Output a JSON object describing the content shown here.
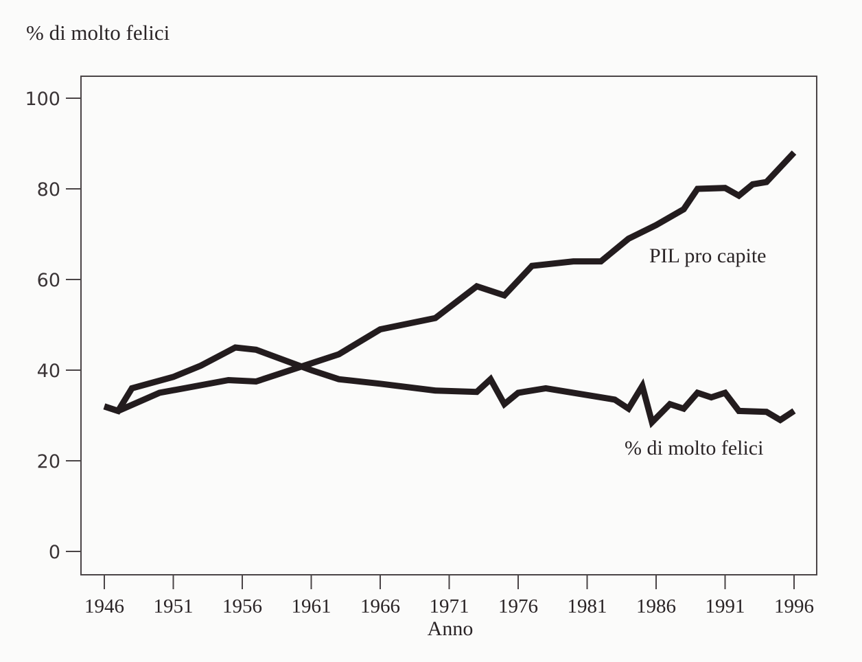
{
  "chart_data": {
    "type": "line",
    "title": "",
    "ylabel": "% di molto felici",
    "xlabel": "Anno",
    "xlim": [
      1946,
      1996
    ],
    "ylim": [
      0,
      100
    ],
    "grid": false,
    "x_ticks": [
      "1946",
      "1951",
      "1956",
      "1961",
      "1966",
      "1971",
      "1976",
      "1981",
      "1986",
      "1991",
      "1996"
    ],
    "y_ticks": [
      "0",
      "20",
      "40",
      "60",
      "80",
      "100"
    ],
    "line_color": "#231c1e",
    "series": [
      {
        "name": "PIL pro capite",
        "x": [
          1946,
          1947,
          1950,
          1955,
          1957,
          1960,
          1963,
          1966,
          1970,
          1973,
          1975,
          1977,
          1980,
          1982,
          1984,
          1986,
          1988,
          1989,
          1991,
          1992,
          1993,
          1994,
          1996
        ],
        "y": [
          32,
          31,
          35,
          37.8,
          37.5,
          40.5,
          43.5,
          49,
          51.5,
          58.5,
          56.5,
          63,
          64,
          64,
          69,
          72,
          75.5,
          80,
          80.2,
          78.5,
          81,
          81.5,
          88
        ]
      },
      {
        "name": "% di molto felici",
        "x": [
          1946,
          1947,
          1948,
          1951,
          1953,
          1955.5,
          1957,
          1961,
          1963,
          1966,
          1970,
          1973,
          1974,
          1975,
          1976,
          1978,
          1983,
          1984,
          1985,
          1985.7,
          1987,
          1988,
          1989,
          1990,
          1991,
          1992,
          1994,
          1995,
          1996
        ],
        "y": [
          32,
          31,
          36,
          38.5,
          41,
          45,
          44.5,
          40,
          38,
          37,
          35.5,
          35.2,
          38,
          32.5,
          35,
          36,
          33.5,
          31.5,
          36.5,
          28.5,
          32.5,
          31.5,
          35,
          34,
          35,
          31,
          30.8,
          29,
          31
        ]
      }
    ],
    "annotations": [
      {
        "text": "PIL pro capite",
        "series": "PIL pro capite"
      },
      {
        "text": "% di molto felici",
        "series": "% di molto felici"
      }
    ]
  }
}
